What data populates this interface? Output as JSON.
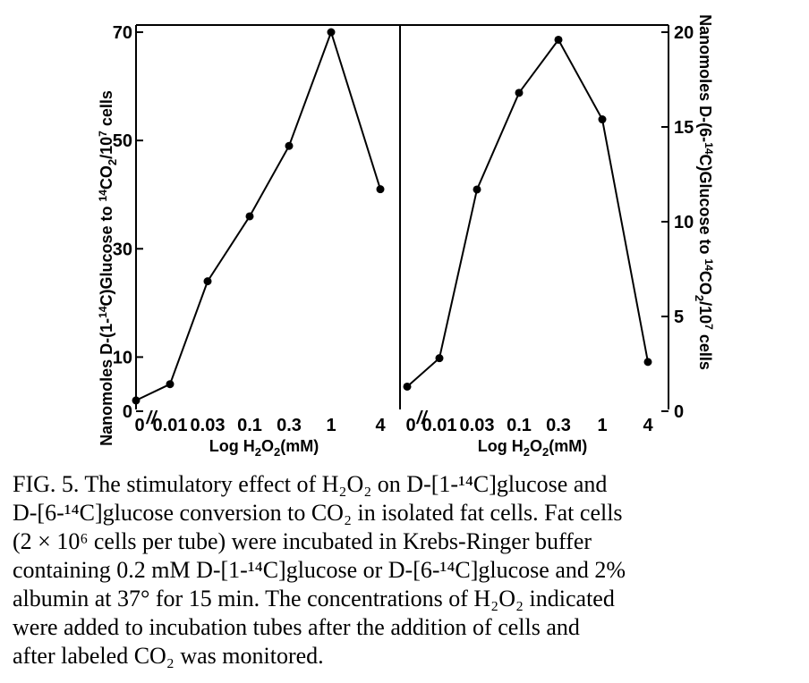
{
  "chart_data": [
    {
      "type": "line",
      "panel": "left",
      "categories": [
        "0",
        "0.01",
        "0.03",
        "0.1",
        "0.3",
        "1",
        "4"
      ],
      "values": [
        2,
        5,
        24,
        36,
        49,
        70,
        41
      ],
      "ylabel": "Nanomoles D-(1-14C)Glucose to 14CO2/10^7 cells",
      "xlabel": "Log H2O2(mM)",
      "ylim": [
        0,
        70
      ],
      "yticks": [
        "0",
        "10",
        "30",
        "50",
        "70"
      ],
      "axis_break_mark": "//",
      "grid": false
    },
    {
      "type": "line",
      "panel": "right",
      "categories": [
        "0",
        "0.01",
        "0.03",
        "0.1",
        "0.3",
        "1",
        "4"
      ],
      "values": [
        1.3,
        2.8,
        11.7,
        16.8,
        19.6,
        15.4,
        2.6
      ],
      "ylabel": "Nanomoles D-(6-14C)Glucose to 14CO2/10^7 cells",
      "xlabel": "Log H2O2(mM)",
      "ylim": [
        0,
        20
      ],
      "yticks": [
        "0",
        "5",
        "10",
        "15",
        "20"
      ],
      "axis_break_mark": "//",
      "grid": false
    }
  ],
  "labels": {
    "left_ylabel_parts": [
      "Nanomoles D-(1-",
      "14",
      "C)Glucose to ",
      "14",
      "CO",
      "2",
      "/10",
      "7",
      " cells"
    ],
    "right_ylabel_parts": [
      "Nanomoles D-(6-",
      "14",
      "C)Glucose to ",
      "14",
      "CO",
      "2",
      "/10",
      "7",
      " cells"
    ],
    "xlabel_parts": [
      "Log H",
      "2",
      "O",
      "2",
      "(mM)"
    ]
  },
  "caption": {
    "lines": [
      "FIG. 5. The stimulatory effect of H₂O₂ on D-[1-¹⁴C]glucose and",
      "D-[6-¹⁴C]glucose conversion to CO₂ in isolated fat cells.  Fat cells",
      "(2 × 10⁶ cells per tube) were incubated in Krebs-Ringer buffer",
      "containing 0.2 mM D-[1-¹⁴C]glucose or D-[6-¹⁴C]glucose and 2%",
      "albumin at 37° for 15 min.  The concentrations of H₂O₂ indicated",
      "were added to incubation tubes after the addition of cells and",
      "after labeled CO₂ was monitored."
    ]
  }
}
